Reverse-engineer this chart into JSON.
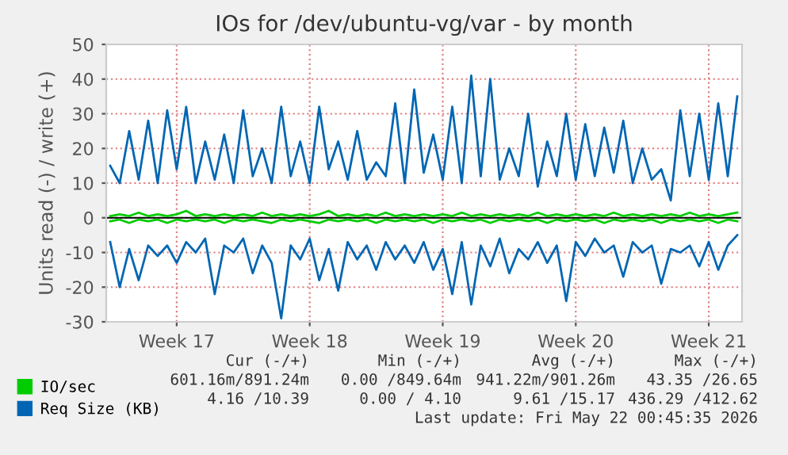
{
  "chart_data": {
    "type": "line",
    "title": "IOs for /dev/ubuntu-vg/var - by month",
    "ylabel": "Units read (-) / write (+)",
    "x": [
      "2026-04-20T00:00",
      "2026-04-20T12:00",
      "2026-04-21T00:00",
      "2026-04-21T12:00",
      "2026-04-22T00:00",
      "2026-04-22T12:00",
      "2026-04-23T00:00",
      "2026-04-23T12:00",
      "2026-04-24T00:00",
      "2026-04-24T12:00",
      "2026-04-25T00:00",
      "2026-04-25T12:00",
      "2026-04-26T00:00",
      "2026-04-26T12:00",
      "2026-04-27T00:00",
      "2026-04-27T12:00",
      "2026-04-28T00:00",
      "2026-04-28T12:00",
      "2026-04-29T00:00",
      "2026-04-29T12:00",
      "2026-04-30T00:00",
      "2026-04-30T12:00",
      "2026-05-01T00:00",
      "2026-05-01T12:00",
      "2026-05-02T00:00",
      "2026-05-02T12:00",
      "2026-05-03T00:00",
      "2026-05-03T12:00",
      "2026-05-04T00:00",
      "2026-05-04T12:00",
      "2026-05-05T00:00",
      "2026-05-05T12:00",
      "2026-05-06T00:00",
      "2026-05-06T12:00",
      "2026-05-07T00:00",
      "2026-05-07T12:00",
      "2026-05-08T00:00",
      "2026-05-08T12:00",
      "2026-05-09T00:00",
      "2026-05-09T12:00",
      "2026-05-10T00:00",
      "2026-05-10T12:00",
      "2026-05-11T00:00",
      "2026-05-11T12:00",
      "2026-05-12T00:00",
      "2026-05-12T12:00",
      "2026-05-13T00:00",
      "2026-05-13T12:00",
      "2026-05-14T00:00",
      "2026-05-14T12:00",
      "2026-05-15T00:00",
      "2026-05-15T12:00",
      "2026-05-16T00:00",
      "2026-05-16T12:00",
      "2026-05-17T00:00",
      "2026-05-17T12:00",
      "2026-05-18T00:00",
      "2026-05-18T12:00",
      "2026-05-19T00:00",
      "2026-05-19T12:00",
      "2026-05-20T00:00",
      "2026-05-20T12:00",
      "2026-05-21T00:00",
      "2026-05-21T12:00",
      "2026-05-22T00:00",
      "2026-05-22T12:00",
      "2026-05-23T00:00"
    ],
    "series": [
      {
        "color": "#00cc00",
        "values": [
          -1,
          -0.5,
          -1.5,
          -0.5,
          -1,
          -0.5,
          -1.5,
          -0.5,
          -1,
          -0.5,
          -1,
          -0.5,
          -1.5,
          -0.5,
          -1,
          -0.5,
          -1,
          -1.5,
          -0.5,
          -1,
          -0.5,
          -1,
          -1.5,
          -0.5,
          -1,
          -0.5,
          -1,
          -0.5,
          -1.5,
          -0.5,
          -1,
          -0.5,
          -1,
          -0.5,
          -1.5,
          -0.5,
          -1,
          -0.5,
          -1,
          -0.5,
          -1.5,
          -0.5,
          -1,
          -0.5,
          -1,
          -0.5,
          -1.5,
          -0.5,
          -1,
          -0.5,
          -1,
          -0.5,
          -1.5,
          -0.5,
          -1,
          -0.5,
          -1,
          -0.5,
          -1.5,
          -0.5,
          -1,
          -0.5,
          -1,
          -0.5,
          -1.5,
          -0.5,
          -1
        ]
      },
      {
        "name": "IO/sec",
        "color": "#00cc00",
        "values": [
          0.5,
          1,
          0.5,
          1.5,
          0.5,
          1,
          0.5,
          1,
          2,
          0.5,
          1,
          0.5,
          1,
          0.5,
          1,
          0.5,
          1.5,
          0.5,
          1,
          0.5,
          1,
          0.5,
          1,
          2,
          0.5,
          1,
          0.5,
          1,
          0.5,
          1.5,
          0.5,
          1,
          0.5,
          1,
          0.5,
          1,
          0.5,
          1.5,
          0.5,
          1,
          0.5,
          1,
          0.5,
          1,
          0.5,
          1.5,
          0.5,
          1,
          0.5,
          1,
          0.5,
          1,
          0.5,
          1.5,
          0.5,
          1,
          0.5,
          1,
          0.5,
          1,
          0.5,
          1.5,
          0.5,
          1,
          0.5,
          1,
          1.5
        ]
      },
      {
        "color": "#0066b3",
        "values": [
          -7,
          -20,
          -9,
          -18,
          -8,
          -11,
          -8,
          -13,
          -7,
          -10,
          -6,
          -22,
          -8,
          -10,
          -6,
          -16,
          -8,
          -13,
          -29,
          -8,
          -12,
          -6,
          -18,
          -9,
          -21,
          -7,
          -12,
          -8,
          -15,
          -7,
          -12,
          -8,
          -13,
          -7,
          -15,
          -9,
          -22,
          -7,
          -25,
          -8,
          -14,
          -6,
          -16,
          -9,
          -12,
          -7,
          -13,
          -8,
          -24,
          -7,
          -11,
          -6,
          -10,
          -8,
          -17,
          -7,
          -10,
          -8,
          -19,
          -9,
          -10,
          -8,
          -14,
          -7,
          -15,
          -8,
          -5
        ]
      },
      {
        "name": "Req Size (KB)",
        "color": "#0066b3",
        "values": [
          15,
          10,
          25,
          11,
          28,
          10,
          31,
          14,
          32,
          10,
          22,
          11,
          24,
          10,
          31,
          12,
          20,
          10,
          32,
          12,
          22,
          10,
          32,
          14,
          22,
          11,
          25,
          11,
          16,
          12,
          33,
          10,
          37,
          13,
          24,
          11,
          32,
          10,
          41,
          12,
          40,
          11,
          20,
          12,
          30,
          9,
          22,
          12,
          30,
          11,
          27,
          12,
          26,
          13,
          28,
          10,
          20,
          11,
          14,
          5,
          31,
          12,
          30,
          11,
          33,
          12,
          35
        ]
      }
    ],
    "xlim": [
      "2026-04-19T19:00",
      "2026-05-23T06:00"
    ],
    "xticks": [
      {
        "value": "2026-04-23T12:00",
        "label": "Week 17"
      },
      {
        "value": "2026-04-30T12:00",
        "label": "Week 18"
      },
      {
        "value": "2026-05-07T12:00",
        "label": "Week 19"
      },
      {
        "value": "2026-05-14T12:00",
        "label": "Week 20"
      },
      {
        "value": "2026-05-21T12:00",
        "label": "Week 21"
      }
    ],
    "ylim": [
      -30,
      50
    ],
    "yticks": [
      -30,
      -20,
      -10,
      0,
      10,
      20,
      30,
      40,
      50
    ],
    "ref_lines": [
      {
        "axis": "y",
        "value": 0,
        "color": "#000000"
      }
    ],
    "grid": true,
    "legend": "bottom",
    "line_style": "solid",
    "marker": "none",
    "annotations": [
      "Cur (-/+)",
      "Min (-/+)",
      "Avg (-/+)",
      "Max (-/+)",
      "601.16m/891.24m",
      "0.00 /849.64m",
      "941.22m/901.26m",
      "43.35 /26.65",
      "4.16 /10.39",
      "0.00 / 4.10",
      "9.61 /15.17",
      "436.29 /412.62",
      "Last update: Fri May 22 00:45:35 2026"
    ]
  }
}
